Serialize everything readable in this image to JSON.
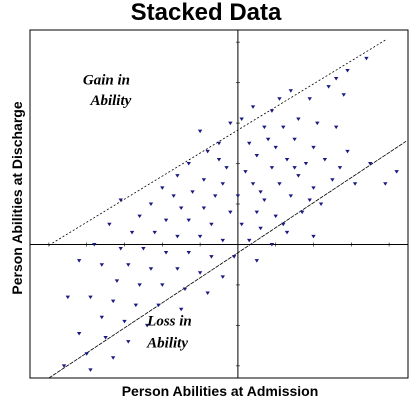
{
  "chart_data": {
    "type": "scatter",
    "title": "Stacked Data",
    "xlabel": "Person Abilities at Admission",
    "ylabel": "Person Abilities at Discharge",
    "xlim": [
      -5.5,
      4.5
    ],
    "ylim": [
      -3.3,
      5.3
    ],
    "grid": false,
    "legend": "none",
    "marker_color": "#1a1a80",
    "annotations": [
      {
        "text": "Gain in",
        "x": -4.1,
        "y": 3.95
      },
      {
        "text": "Ability",
        "x": -3.9,
        "y": 3.45
      },
      {
        "text": "Loss in",
        "x": -2.4,
        "y": -2.0
      },
      {
        "text": "Ability",
        "x": -2.4,
        "y": -2.55
      }
    ],
    "reference_lines": [
      {
        "name": "upper",
        "points": [
          [
            -5.0,
            -0.02
          ],
          [
            3.9,
            5.05
          ]
        ]
      },
      {
        "name": "lower",
        "points": [
          [
            -5.0,
            -3.3
          ],
          [
            4.45,
            2.55
          ]
        ]
      }
    ],
    "series": [
      {
        "points": [
          [
            3.4,
            4.6
          ],
          [
            2.9,
            4.3
          ],
          [
            2.6,
            4.1
          ],
          [
            2.4,
            3.9
          ],
          [
            2.8,
            3.7
          ],
          [
            1.4,
            3.8
          ],
          [
            1.1,
            3.6
          ],
          [
            1.9,
            3.6
          ],
          [
            0.4,
            3.4
          ],
          [
            0.9,
            3.3
          ],
          [
            1.6,
            3.1
          ],
          [
            2.1,
            3.0
          ],
          [
            2.6,
            2.9
          ],
          [
            0.1,
            3.1
          ],
          [
            -0.2,
            3.0
          ],
          [
            1.2,
            2.9
          ],
          [
            0.7,
            2.9
          ],
          [
            -1.0,
            2.8
          ],
          [
            -0.5,
            2.5
          ],
          [
            0.3,
            2.5
          ],
          [
            1.0,
            2.4
          ],
          [
            1.5,
            2.6
          ],
          [
            2.0,
            2.4
          ],
          [
            2.9,
            2.3
          ],
          [
            -0.8,
            2.3
          ],
          [
            0.5,
            2.2
          ],
          [
            1.3,
            2.1
          ],
          [
            1.8,
            2.0
          ],
          [
            2.3,
            2.1
          ],
          [
            2.7,
            1.9
          ],
          [
            -1.3,
            2.0
          ],
          [
            -0.3,
            1.9
          ],
          [
            0.2,
            1.8
          ],
          [
            0.9,
            1.9
          ],
          [
            1.6,
            1.7
          ],
          [
            2.5,
            1.6
          ],
          [
            -1.6,
            1.7
          ],
          [
            -0.9,
            1.6
          ],
          [
            -0.4,
            1.5
          ],
          [
            0.4,
            1.5
          ],
          [
            1.1,
            1.5
          ],
          [
            2.0,
            1.4
          ],
          [
            3.1,
            1.5
          ],
          [
            -2.0,
            1.4
          ],
          [
            -1.2,
            1.3
          ],
          [
            -0.6,
            1.2
          ],
          [
            0.0,
            1.2
          ],
          [
            0.7,
            1.1
          ],
          [
            1.4,
            1.2
          ],
          [
            2.2,
            1.0
          ],
          [
            -3.1,
            1.1
          ],
          [
            -2.3,
            1.0
          ],
          [
            -1.5,
            0.9
          ],
          [
            -0.9,
            0.9
          ],
          [
            -0.2,
            0.8
          ],
          [
            0.5,
            0.8
          ],
          [
            1.0,
            0.7
          ],
          [
            1.7,
            0.8
          ],
          [
            -2.6,
            0.7
          ],
          [
            -1.9,
            0.6
          ],
          [
            -1.3,
            0.6
          ],
          [
            -0.7,
            0.5
          ],
          [
            0.1,
            0.5
          ],
          [
            0.6,
            0.4
          ],
          [
            1.3,
            0.3
          ],
          [
            2.0,
            0.2
          ],
          [
            -3.4,
            0.5
          ],
          [
            -2.8,
            0.3
          ],
          [
            -2.2,
            0.3
          ],
          [
            -1.6,
            0.2
          ],
          [
            -1.0,
            0.2
          ],
          [
            -0.4,
            0.1
          ],
          [
            0.3,
            0.1
          ],
          [
            0.9,
            0.0
          ],
          [
            -3.8,
            0.0
          ],
          [
            -3.1,
            -0.1
          ],
          [
            -2.5,
            -0.1
          ],
          [
            -1.9,
            -0.2
          ],
          [
            -1.3,
            -0.2
          ],
          [
            -0.7,
            -0.3
          ],
          [
            -0.1,
            -0.3
          ],
          [
            0.5,
            -0.4
          ],
          [
            -4.2,
            -0.4
          ],
          [
            -3.6,
            -0.5
          ],
          [
            -2.9,
            -0.5
          ],
          [
            -2.3,
            -0.6
          ],
          [
            -1.6,
            -0.6
          ],
          [
            -1.0,
            -0.7
          ],
          [
            -0.4,
            -0.8
          ],
          [
            -3.2,
            -0.9
          ],
          [
            -2.6,
            -1.0
          ],
          [
            -2.0,
            -1.0
          ],
          [
            -1.4,
            -1.1
          ],
          [
            -0.8,
            -1.2
          ],
          [
            -4.5,
            -1.3
          ],
          [
            -3.9,
            -1.3
          ],
          [
            -3.3,
            -1.4
          ],
          [
            -2.7,
            -1.5
          ],
          [
            -2.1,
            -1.5
          ],
          [
            -1.5,
            -1.6
          ],
          [
            -3.6,
            -1.8
          ],
          [
            -3.0,
            -1.9
          ],
          [
            -2.4,
            -2.0
          ],
          [
            -4.2,
            -2.2
          ],
          [
            -3.5,
            -2.3
          ],
          [
            -2.9,
            -2.4
          ],
          [
            -4.0,
            -2.7
          ],
          [
            -3.3,
            -2.8
          ],
          [
            -4.6,
            -3.0
          ],
          [
            -3.9,
            -3.1
          ],
          [
            3.9,
            1.5
          ],
          [
            3.5,
            2.0
          ],
          [
            4.2,
            1.8
          ],
          [
            1.2,
            0.5
          ],
          [
            1.5,
            1.9
          ],
          [
            0.8,
            2.6
          ],
          [
            -1.7,
            1.2
          ],
          [
            -0.5,
            2.1
          ],
          [
            0.6,
            1.3
          ],
          [
            1.9,
            1.1
          ]
        ]
      }
    ]
  }
}
